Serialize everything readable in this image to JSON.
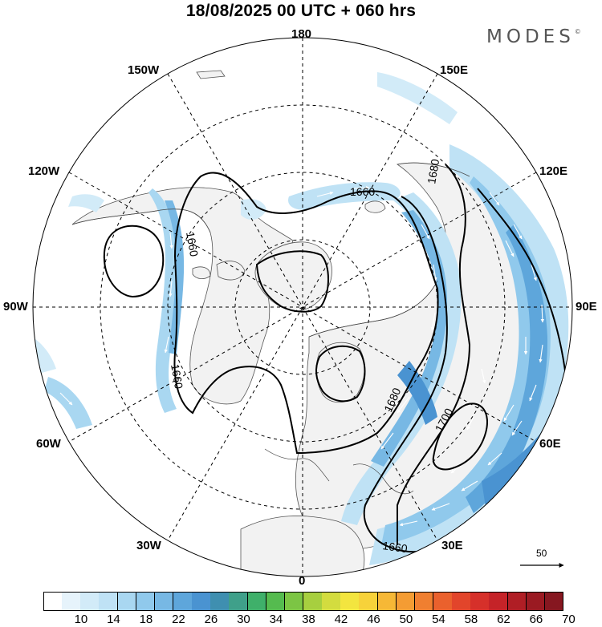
{
  "title": "18/08/2025  00 UTC  + 060 hrs",
  "brand": "MODES",
  "brand_mark": "©",
  "lon_labels": {
    "l180": "180",
    "l150w": "150W",
    "l150e": "150E",
    "l120w": "120W",
    "l120e": "120E",
    "l90w": "90W",
    "l90e": "90E",
    "l60w": "60W",
    "l60e": "60E",
    "l30w": "30W",
    "l30e": "30E",
    "l0": "0"
  },
  "contour_labels": [
    "1660",
    "1660",
    "1660",
    "1680",
    "1700",
    "1680",
    "1660"
  ],
  "wind_reference": {
    "value": "50"
  },
  "colorbar": {
    "ticks": [
      "10",
      "14",
      "18",
      "22",
      "26",
      "30",
      "34",
      "38",
      "42",
      "46",
      "50",
      "54",
      "58",
      "62",
      "66",
      "70"
    ],
    "colors": [
      "#ffffff",
      "#e6f3fb",
      "#d2ebf8",
      "#bfe2f5",
      "#a9d7f1",
      "#90c9ec",
      "#77b8e4",
      "#5ea6db",
      "#4a93d1",
      "#3f8fb0",
      "#3fa08a",
      "#3fb06a",
      "#55bb4f",
      "#7cc544",
      "#a7cf3f",
      "#d3dc3f",
      "#f3e53f",
      "#f7d23a",
      "#f6b836",
      "#f49c33",
      "#f07f30",
      "#ea612d",
      "#e2452b",
      "#d6302a",
      "#c52328",
      "#b01e25",
      "#9a1a22",
      "#861720"
    ]
  }
}
